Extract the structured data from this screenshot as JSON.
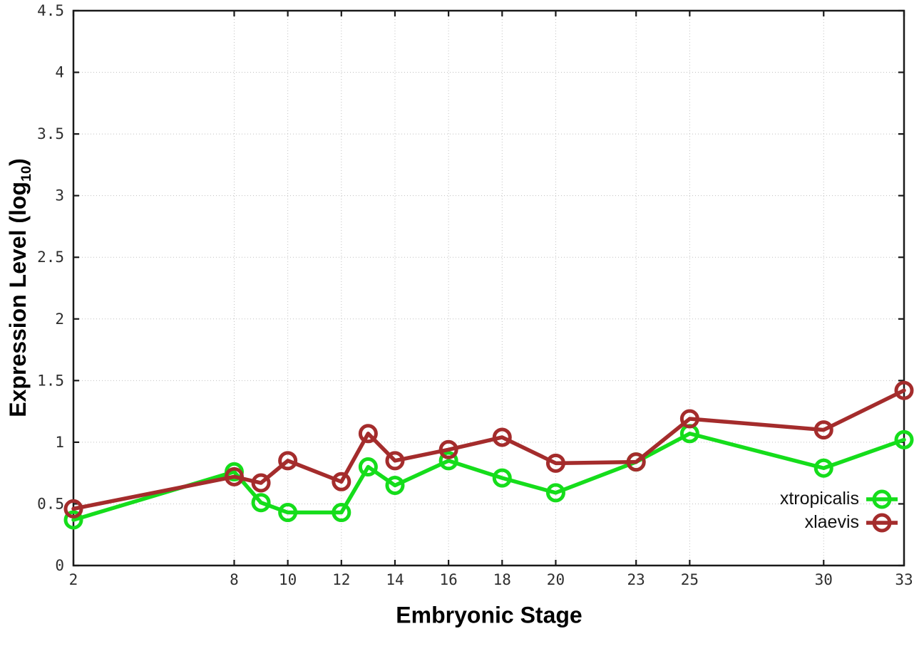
{
  "chart_data": {
    "type": "line",
    "title": "",
    "xlabel": "Embryonic Stage",
    "ylabel": "Expression Level (log10)",
    "ylabel_parts": {
      "main": "Expression Level (log",
      "sub": "10",
      "end": ")"
    },
    "x": [
      2,
      8,
      9,
      10,
      12,
      13,
      14,
      16,
      18,
      20,
      23,
      25,
      30,
      33
    ],
    "xticks": [
      2,
      8,
      10,
      12,
      14,
      16,
      18,
      20,
      23,
      25,
      30,
      33
    ],
    "xtick_labels": [
      "2",
      "8",
      "10",
      "12",
      "14",
      "16",
      "18",
      "20",
      "23",
      "25",
      "30",
      "33"
    ],
    "yticks": [
      0,
      0.5,
      1,
      1.5,
      2,
      2.5,
      3,
      3.5,
      4,
      4.5
    ],
    "ytick_labels": [
      "0",
      "0.5",
      "1",
      "1.5",
      "2",
      "2.5",
      "3",
      "3.5",
      "4",
      "4.5"
    ],
    "xlim": [
      2,
      33
    ],
    "ylim": [
      0,
      4.5
    ],
    "grid": true,
    "legend_position": "inside-bottom-right",
    "marker": "open-circle",
    "series": [
      {
        "name": "xtropicalis",
        "color": "#15dd1b",
        "values": [
          0.37,
          0.76,
          0.51,
          0.43,
          0.43,
          0.8,
          0.65,
          0.85,
          0.71,
          0.59,
          0.84,
          1.07,
          0.79,
          1.02
        ]
      },
      {
        "name": "xlaevis",
        "color": "#a42c2c",
        "values": [
          0.46,
          0.72,
          0.67,
          0.85,
          0.68,
          1.07,
          0.85,
          0.94,
          1.04,
          0.83,
          0.84,
          1.19,
          1.1,
          1.42
        ]
      }
    ]
  }
}
